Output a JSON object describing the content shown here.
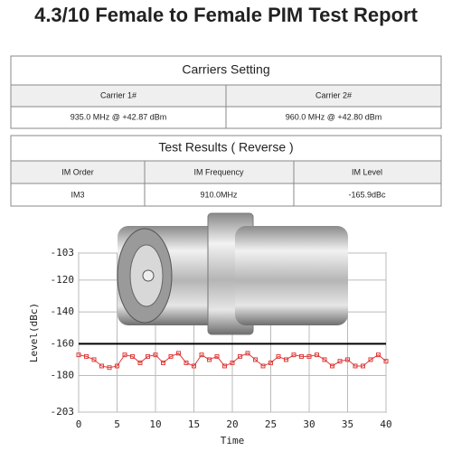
{
  "header": {
    "title": "4.3/10 Female to  Female PIM Test Report"
  },
  "carriers": {
    "title": "Carriers Setting",
    "columns": [
      "Carrier 1#",
      "Carrier 2#"
    ],
    "values": [
      "935.0 MHz @ +42.87 dBm",
      "960.0 MHz @ +42.80 dBm"
    ]
  },
  "results": {
    "title": "Test Results ( Reverse )",
    "columns": [
      "IM Order",
      "IM Frequency",
      "IM Level"
    ],
    "rows": [
      [
        "IM3",
        "910.0MHz",
        "-165.9dBc"
      ]
    ]
  },
  "chart_data": {
    "type": "line",
    "x": [
      0,
      1,
      2,
      3,
      4,
      5,
      6,
      7,
      8,
      9,
      10,
      11,
      12,
      13,
      14,
      15,
      16,
      17,
      18,
      19,
      20,
      21,
      22,
      23,
      24,
      25,
      26,
      27,
      28,
      29,
      30,
      31,
      32,
      33,
      34,
      35,
      36,
      37,
      38,
      39,
      40
    ],
    "values": [
      -167,
      -168,
      -170,
      -174,
      -175,
      -174,
      -167,
      -168,
      -172,
      -168,
      -167,
      -172,
      -168,
      -166,
      -172,
      -174,
      -167,
      -170,
      -168,
      -174,
      -172,
      -168,
      -166,
      -170,
      -174,
      -172,
      -168,
      -170,
      -167,
      -168,
      -168,
      -167,
      -170,
      -174,
      -171,
      -170,
      -174,
      -174,
      -170,
      -167,
      -171
    ],
    "color": "#e03a3a",
    "limit": -160,
    "limit_color": "#000000",
    "xlabel": "Time",
    "ylabel": "Level(dBc)",
    "xlim": [
      0,
      40
    ],
    "xticks": [
      0,
      5,
      10,
      15,
      20,
      25,
      30,
      35,
      40
    ],
    "ylim": [
      -203,
      -103
    ],
    "yticks": [
      -103,
      -120,
      -140,
      -160,
      -180,
      -203
    ],
    "grid": true
  }
}
